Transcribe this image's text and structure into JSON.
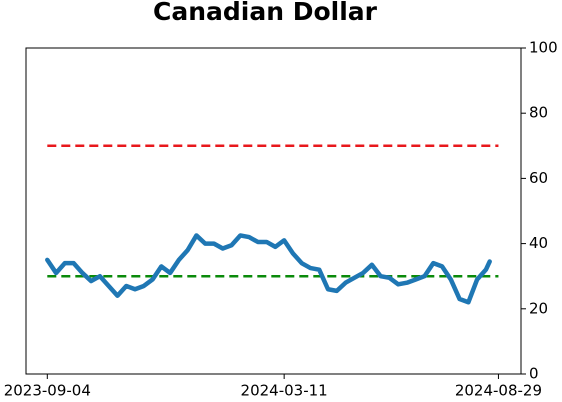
{
  "chart_data": {
    "type": "line",
    "title": "Canadian Dollar",
    "x": [
      "2023-09-04",
      "2023-09-11",
      "2023-09-18",
      "2023-09-25",
      "2023-10-02",
      "2023-10-09",
      "2023-10-16",
      "2023-10-23",
      "2023-10-30",
      "2023-11-06",
      "2023-11-13",
      "2023-11-20",
      "2023-11-27",
      "2023-12-04",
      "2023-12-11",
      "2023-12-18",
      "2023-12-25",
      "2024-01-01",
      "2024-01-08",
      "2024-01-15",
      "2024-01-22",
      "2024-01-29",
      "2024-02-05",
      "2024-02-12",
      "2024-02-19",
      "2024-02-26",
      "2024-03-04",
      "2024-03-11",
      "2024-03-18",
      "2024-03-25",
      "2024-04-01",
      "2024-04-08",
      "2024-04-15",
      "2024-04-22",
      "2024-04-29",
      "2024-05-06",
      "2024-05-13",
      "2024-05-20",
      "2024-05-27",
      "2024-06-03",
      "2024-06-10",
      "2024-06-17",
      "2024-06-24",
      "2024-07-01",
      "2024-07-08",
      "2024-07-15",
      "2024-07-22",
      "2024-07-29",
      "2024-08-05",
      "2024-08-12",
      "2024-08-19",
      "2024-08-22"
    ],
    "series": [
      {
        "color": "#1f77b4",
        "values": [
          35,
          31,
          34,
          34,
          31,
          28.5,
          30,
          27,
          24,
          27,
          26,
          27,
          29,
          33,
          31,
          35,
          38,
          42.5,
          40,
          40,
          38.5,
          39.5,
          42.5,
          42,
          40.5,
          40.5,
          39,
          41,
          37,
          34,
          32.5,
          32,
          26,
          25.5,
          28,
          29.5,
          31,
          33.5,
          30,
          29.5,
          27.5,
          28,
          29,
          30,
          34,
          33,
          29,
          23,
          22,
          29,
          32,
          34.5
        ]
      }
    ],
    "hlines": [
      {
        "value": 70,
        "color": "#e8181c"
      },
      {
        "value": 30,
        "color": "#0a8a0a"
      }
    ],
    "xlim": [
      "2023-08-18",
      "2024-09-16"
    ],
    "xticks": [
      "2023-09-04",
      "2024-03-11",
      "2024-08-29"
    ],
    "ylim": [
      0,
      100
    ],
    "yticks": [
      0,
      20,
      40,
      60,
      80,
      100
    ],
    "grid": false
  }
}
